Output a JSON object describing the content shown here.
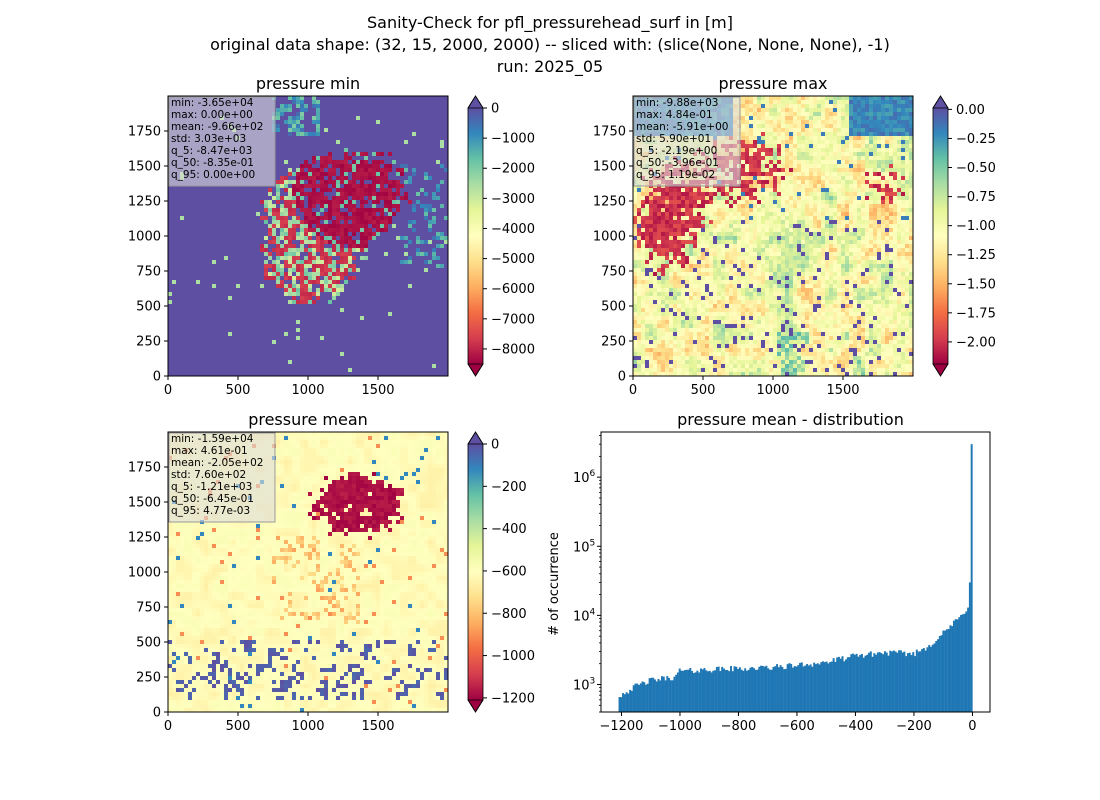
{
  "figure": {
    "suptitle": [
      "Sanity-Check for pfl_pressurehead_surf in [m]",
      "original data shape: (32, 15, 2000, 2000) -- sliced with: (slice(None, None, None), -1)",
      "run: 2025_05"
    ]
  },
  "chart_data": [
    {
      "type": "heatmap",
      "title": "pressure min",
      "xlabel": "",
      "ylabel": "",
      "xlim": [
        0,
        2000
      ],
      "ylim": [
        0,
        2000
      ],
      "xticks": [
        "0",
        "500",
        "1000",
        "1500"
      ],
      "yticks": [
        "0",
        "250",
        "500",
        "750",
        "1000",
        "1250",
        "1500",
        "1750"
      ],
      "colormap": "Spectral",
      "colorbar": {
        "min": -8500,
        "max": 0,
        "extend": "both",
        "ticks": [
          "0",
          "−1000",
          "−2000",
          "−3000",
          "−4000",
          "−5000",
          "−6000",
          "−7000",
          "−8000"
        ]
      },
      "stats": [
        "min: -3.65e+04",
        "max: 0.00e+00",
        "mean: -9.66e+02",
        "std: 3.03e+03",
        "q_5: -8.47e+03",
        "q_50: -8.35e-01",
        "q_95: 0.00e+00"
      ]
    },
    {
      "type": "heatmap",
      "title": "pressure max",
      "xlabel": "",
      "ylabel": "",
      "xlim": [
        0,
        2000
      ],
      "ylim": [
        0,
        2000
      ],
      "xticks": [
        "0",
        "500",
        "1000",
        "1500"
      ],
      "yticks": [
        "0",
        "250",
        "500",
        "750",
        "1000",
        "1250",
        "1500",
        "1750"
      ],
      "colormap": "Spectral",
      "colorbar": {
        "min": -2.19,
        "max": 0.0119,
        "extend": "both",
        "ticks": [
          "0.00",
          "−0.25",
          "−0.50",
          "−0.75",
          "−1.00",
          "−1.25",
          "−1.50",
          "−1.75",
          "−2.00"
        ]
      },
      "stats": [
        "min: -9.88e+03",
        "max: 4.84e-01",
        "mean: -5.91e+00",
        "std: 5.90e+01",
        "q_5: -2.19e+00",
        "q_50: -3.96e-01",
        "q_95: 1.19e-02"
      ]
    },
    {
      "type": "heatmap",
      "title": "pressure mean",
      "xlabel": "",
      "ylabel": "",
      "xlim": [
        0,
        2000
      ],
      "ylim": [
        0,
        2000
      ],
      "xticks": [
        "0",
        "500",
        "1000",
        "1500"
      ],
      "yticks": [
        "0",
        "250",
        "500",
        "750",
        "1000",
        "1250",
        "1500",
        "1750"
      ],
      "colormap": "Spectral",
      "colorbar": {
        "min": -1210,
        "max": 0.00477,
        "extend": "both",
        "ticks": [
          "0",
          "−200",
          "−400",
          "−600",
          "−800",
          "−1000",
          "−1200"
        ]
      },
      "stats": [
        "min: -1.59e+04",
        "max: 4.61e-01",
        "mean: -2.05e+02",
        "std: 7.60e+02",
        "q_5: -1.21e+03",
        "q_50: -6.45e-01",
        "q_95: 4.77e-03"
      ]
    },
    {
      "type": "bar",
      "title": "pressure mean - distribution",
      "xlabel": "",
      "ylabel": "# of occurrence",
      "yscale": "log",
      "xlim": [
        -1270,
        60
      ],
      "ylim": [
        400,
        4500000
      ],
      "xticks": [
        {
          "value": -1200,
          "label": "−1200"
        },
        {
          "value": -1000,
          "label": "−1000"
        },
        {
          "value": -800,
          "label": "−800"
        },
        {
          "value": -600,
          "label": "−600"
        },
        {
          "value": -400,
          "label": "−400"
        },
        {
          "value": -200,
          "label": "−200"
        },
        {
          "value": 0,
          "label": "0"
        }
      ],
      "yticks": [
        {
          "value": 1000,
          "base": "10",
          "exp": "3"
        },
        {
          "value": 10000,
          "base": "10",
          "exp": "4"
        },
        {
          "value": 100000,
          "base": "10",
          "exp": "5"
        },
        {
          "value": 1000000,
          "base": "10",
          "exp": "6"
        }
      ],
      "color": "#1f77b4",
      "bins": {
        "start": -1210,
        "end": 0,
        "count": 200
      },
      "profile": [
        [
          -1210,
          680
        ],
        [
          -1150,
          950
        ],
        [
          -1100,
          1150
        ],
        [
          -1010,
          1300
        ],
        [
          -1000,
          1700
        ],
        [
          -990,
          1550
        ],
        [
          -900,
          1650
        ],
        [
          -800,
          1700
        ],
        [
          -700,
          1750
        ],
        [
          -600,
          1900
        ],
        [
          -500,
          2100
        ],
        [
          -400,
          2600
        ],
        [
          -300,
          2900
        ],
        [
          -200,
          2800
        ],
        [
          -150,
          3600
        ],
        [
          -100,
          5500
        ],
        [
          -60,
          8000
        ],
        [
          -30,
          10500
        ],
        [
          -10,
          15000
        ],
        [
          -3,
          30000
        ],
        [
          0,
          3000000
        ]
      ]
    }
  ]
}
